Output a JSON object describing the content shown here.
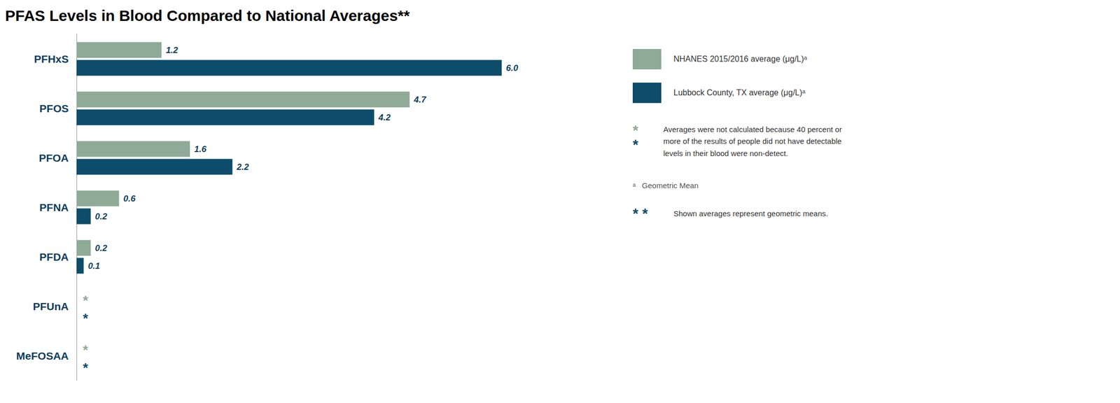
{
  "chart_data": {
    "type": "bar",
    "orientation": "horizontal",
    "title": "PFAS Levels in Blood Compared to National Averages**",
    "categories": [
      "PFHxS",
      "PFOS",
      "PFOA",
      "PFNA",
      "PFDA",
      "PFUnA",
      "MeFOSAA"
    ],
    "series": [
      {
        "name": "NHANES 2015/2016 average (μg/L)ᵃ",
        "color": "#8faa96",
        "values": [
          1.2,
          4.7,
          1.6,
          0.6,
          0.2,
          null,
          null
        ],
        "value_labels": [
          "1.2",
          "4.7",
          "1.6",
          "0.6",
          "0.2",
          "*",
          "*"
        ]
      },
      {
        "name": "Lubbock County, TX average (μg/L)ᵃ",
        "color": "#0d4d6b",
        "values": [
          6.0,
          4.2,
          2.2,
          0.2,
          0.1,
          null,
          null
        ],
        "value_labels": [
          "6.0",
          "4.2",
          "2.2",
          "0.2",
          "0.1",
          "*",
          "*"
        ]
      }
    ],
    "xlim": [
      0,
      7.2
    ],
    "tick_labels": "y",
    "data_labels": true,
    "grid": false,
    "legend": "right",
    "annotations": [
      {
        "text": "*",
        "color": "#8faa96"
      },
      {
        "text": "*",
        "color": "#0d4d6b"
      },
      {
        "text": "Averages were not calculated because 40 percent or\nmore of the results of people did not have detectable\nlevels in their blood were non-detect."
      },
      {
        "text": "ᵃ   Geometric Mean"
      },
      {
        "text": "* *",
        "color": "#0d4d6b"
      },
      {
        "text": "Shown averages represent geometric means."
      }
    ]
  }
}
